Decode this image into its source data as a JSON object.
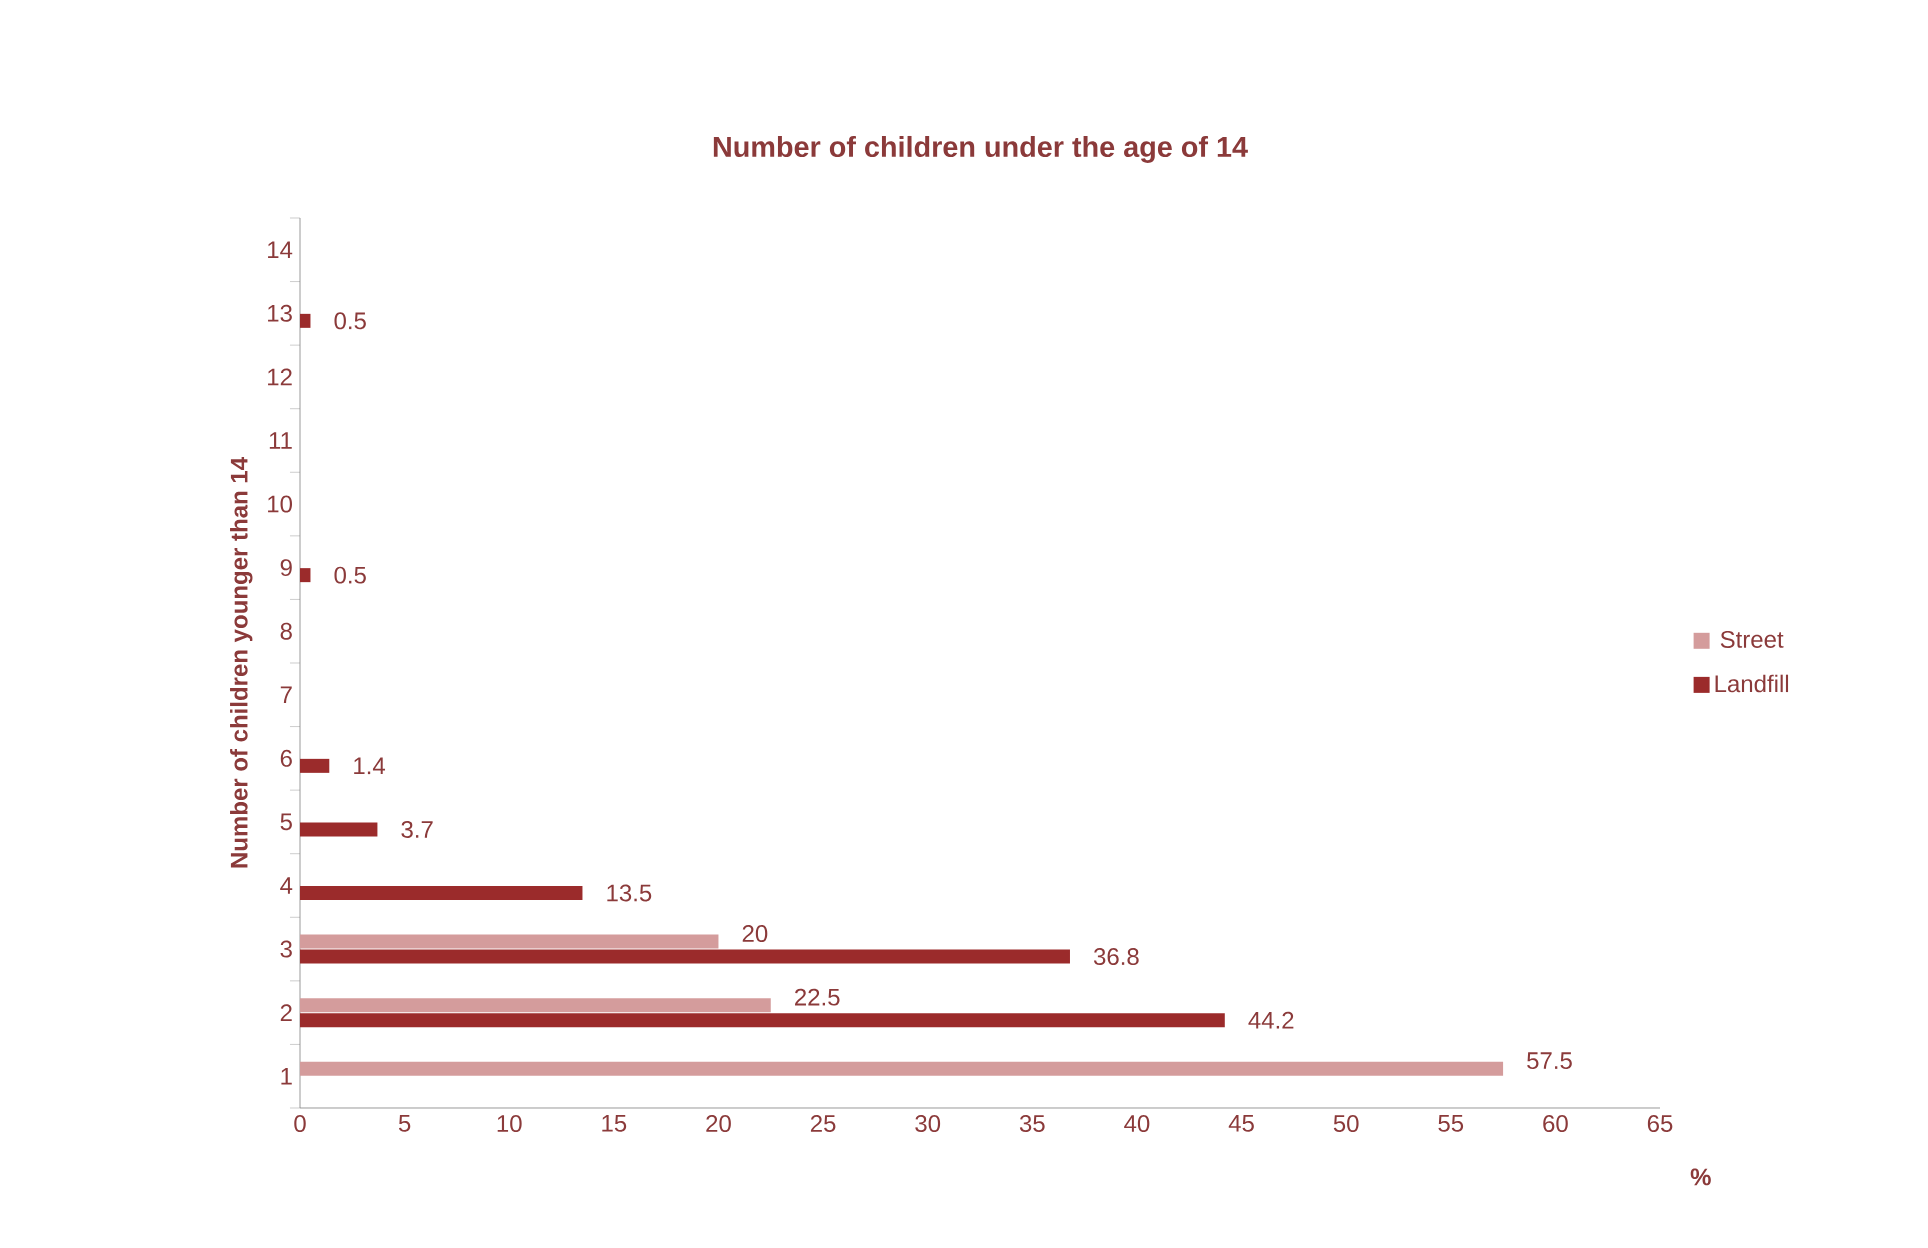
{
  "chart_data": {
    "type": "bar",
    "orientation": "horizontal",
    "title": "Number of children under the age of 14",
    "xlabel": "%",
    "ylabel": "Number of children younger than 14",
    "categories": [
      "14",
      "13",
      "12",
      "11",
      "10",
      "9",
      "8",
      "7",
      "6",
      "5",
      "4",
      "3",
      "2",
      "1"
    ],
    "series": [
      {
        "name": "Street",
        "color": "#d49c9c",
        "values": [
          null,
          null,
          null,
          null,
          null,
          null,
          null,
          null,
          null,
          null,
          null,
          20,
          22.5,
          57.5
        ]
      },
      {
        "name": "Landfill",
        "color": "#9b2b2b",
        "values": [
          null,
          0.5,
          null,
          null,
          null,
          0.5,
          null,
          null,
          1.4,
          3.7,
          13.5,
          36.8,
          44.2,
          null
        ]
      }
    ],
    "xlim": [
      0,
      65
    ],
    "xticks": [
      0,
      5,
      10,
      15,
      20,
      25,
      30,
      35,
      40,
      45,
      50,
      55,
      60,
      65
    ],
    "data_labels": true,
    "grid": false,
    "legend": "right"
  }
}
